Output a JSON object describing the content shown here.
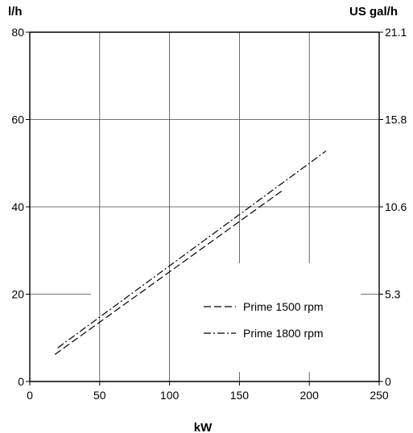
{
  "chart_data": {
    "type": "line",
    "title": "",
    "xlabel": "kW",
    "ylabel": "l/h",
    "y2label": "US gal/h",
    "xlim": [
      0,
      250
    ],
    "ylim": [
      0,
      80
    ],
    "xticks": [
      0,
      50,
      100,
      150,
      200,
      250
    ],
    "yticks": [
      0,
      20,
      40,
      60,
      80
    ],
    "y2ticks": [
      {
        "value": 0,
        "label": "0"
      },
      {
        "value": 20,
        "label": "5.3"
      },
      {
        "value": 40,
        "label": "10.6"
      },
      {
        "value": 60,
        "label": "15.8"
      },
      {
        "value": 80,
        "label": "21.1"
      }
    ],
    "grid": true,
    "legend_position": "bottom-right",
    "series": [
      {
        "name": "Prime 1500 rpm",
        "style": "dashed",
        "x": [
          18,
          181
        ],
        "y": [
          6.2,
          43.8
        ]
      },
      {
        "name": "Prime 1800 rpm",
        "style": "dash-dot",
        "x": [
          20,
          212
        ],
        "y": [
          7.7,
          52.8
        ]
      }
    ]
  }
}
